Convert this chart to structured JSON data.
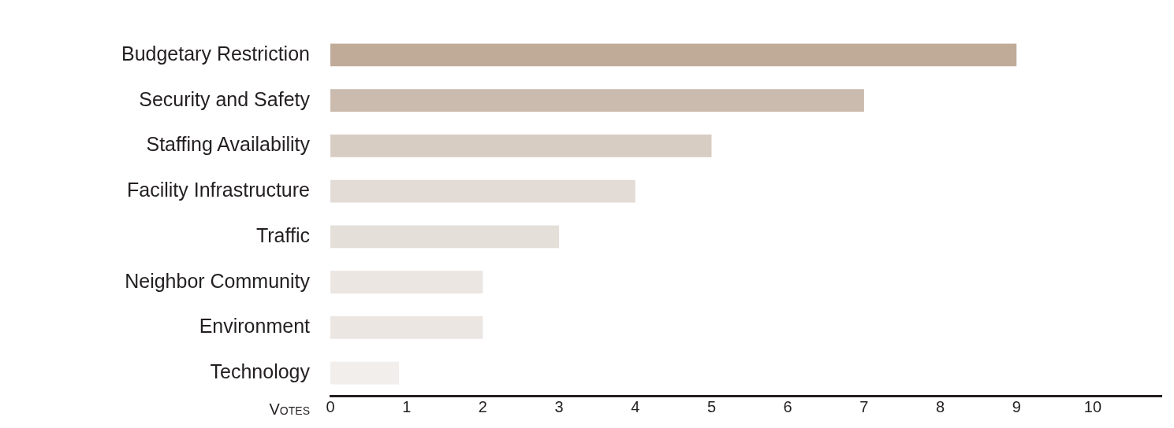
{
  "chart_data": {
    "type": "bar",
    "orientation": "horizontal",
    "xlabel": "Votes",
    "categories": [
      "Budgetary Restriction",
      "Security and Safety",
      "Staffing Availability",
      "Facility Infrastructure",
      "Traffic",
      "Neighbor Community",
      "Environment",
      "Technology"
    ],
    "values": [
      9,
      7,
      5,
      4,
      3,
      2,
      2,
      0.9
    ],
    "colors": [
      "#c0aa98",
      "#cbbbae",
      "#d8cdc3",
      "#e3dcd6",
      "#e5dfd9",
      "#ebe6e2",
      "#ebe6e2",
      "#f1eeeb"
    ],
    "xlim": [
      0,
      10.9
    ],
    "xticks": [
      0,
      1,
      2,
      3,
      4,
      5,
      6,
      7,
      8,
      9,
      10
    ],
    "grid": false,
    "legend": false
  }
}
